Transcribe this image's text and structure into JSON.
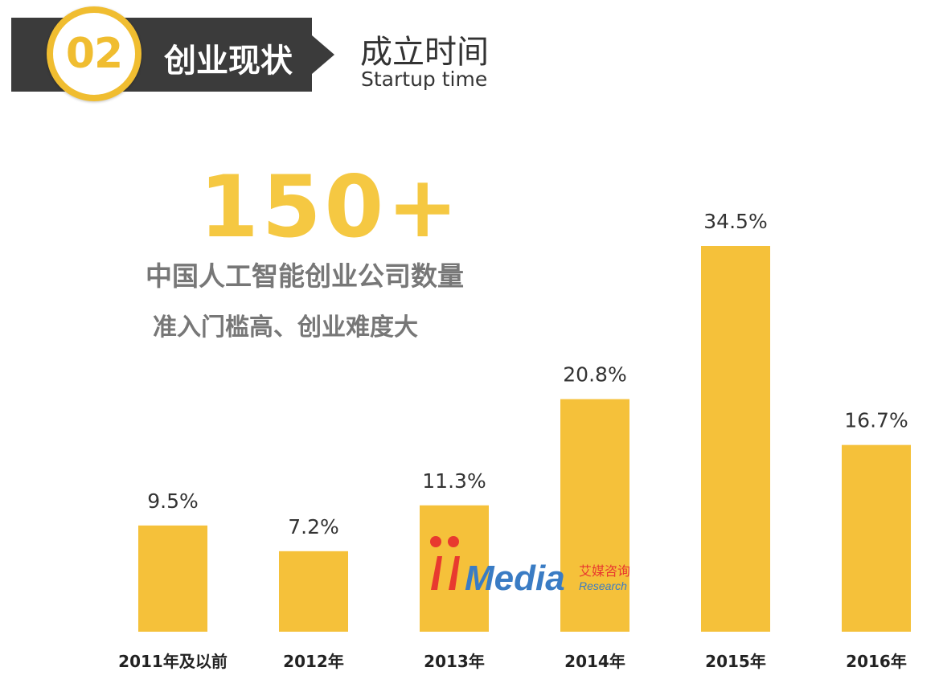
{
  "header": {
    "step_number": "02",
    "section_title": "创业现状",
    "subtitle_cn": "成立时间",
    "subtitle_en": "Startup time"
  },
  "stat": {
    "big_number": "150+",
    "line1": "中国人工智能创业公司数量",
    "line2": "准入门槛高、创业难度大"
  },
  "colors": {
    "bar": "#f5c13a",
    "accent": "#f0bd30",
    "header_bg": "#3b3b3b"
  },
  "watermark": {
    "brand": "iiMedia",
    "brand_cn": "艾媒咨询",
    "brand_sub": "Research"
  },
  "chart_data": {
    "type": "bar",
    "categories": [
      "2011年及以前",
      "2012年",
      "2013年",
      "2014年",
      "2015年",
      "2016年"
    ],
    "values": [
      9.5,
      7.2,
      11.3,
      20.8,
      34.5,
      16.7
    ],
    "value_labels": [
      "9.5%",
      "7.2%",
      "11.3%",
      "20.8%",
      "34.5%",
      "16.7%"
    ],
    "ylim": [
      0,
      34.5
    ],
    "grid": false,
    "legend": "none"
  }
}
